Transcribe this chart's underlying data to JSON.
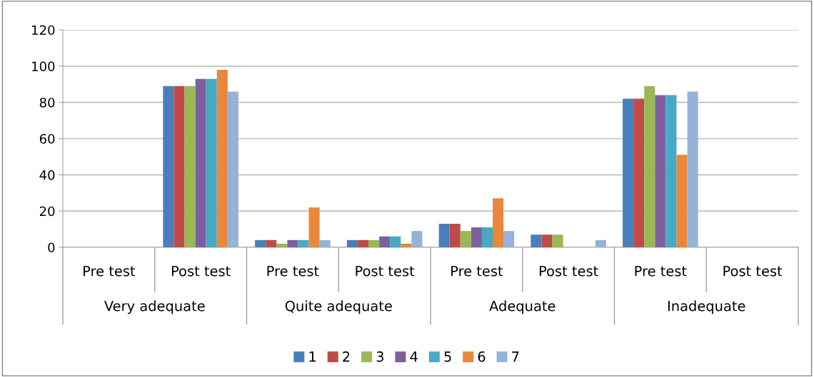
{
  "chart_data": {
    "type": "bar",
    "categories": [
      "Pre test",
      "Post test",
      "Pre test",
      "Post test",
      "Pre test",
      "Post test",
      "Pre test",
      "Post test"
    ],
    "annotations": [
      "Very adequate",
      "Quite adequate",
      "Adequate",
      "Inadequate"
    ],
    "series": [
      {
        "name": "1",
        "color": "#4a7ebb",
        "values": [
          0,
          89,
          4,
          4,
          13,
          7,
          82,
          0
        ]
      },
      {
        "name": "2",
        "color": "#be4b48",
        "values": [
          0,
          89,
          4,
          4,
          13,
          7,
          82,
          0
        ]
      },
      {
        "name": "3",
        "color": "#98b954",
        "values": [
          0,
          89,
          2,
          4,
          9,
          7,
          89,
          0
        ]
      },
      {
        "name": "4",
        "color": "#7d5fa0",
        "values": [
          0,
          93,
          4,
          6,
          11,
          0,
          84,
          0
        ]
      },
      {
        "name": "5",
        "color": "#46aac5",
        "values": [
          0,
          93,
          4,
          6,
          11,
          0,
          84,
          0
        ]
      },
      {
        "name": "6",
        "color": "#e9883a",
        "values": [
          0,
          98,
          22,
          2,
          27,
          0,
          51,
          0
        ]
      },
      {
        "name": "7",
        "color": "#95b3d7",
        "values": [
          0,
          86,
          4,
          9,
          9,
          4,
          86,
          0
        ]
      }
    ],
    "ylim": [
      0,
      120
    ],
    "yticks": [
      0,
      20,
      40,
      60,
      80,
      100,
      120
    ],
    "grid": "y",
    "legend": "bottom"
  }
}
